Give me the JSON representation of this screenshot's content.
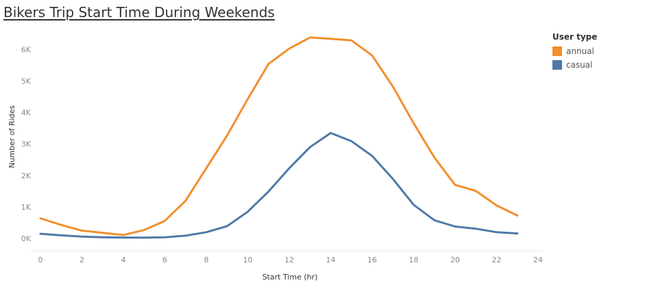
{
  "page": {
    "title": "Bikers Trip Start Time During Weekends"
  },
  "legend": {
    "title": "User type",
    "items": [
      {
        "label": "annual",
        "color": "#F28E2B"
      },
      {
        "label": "casual",
        "color": "#4E79A7"
      }
    ]
  },
  "chart_data": {
    "type": "line",
    "title": "Bikers Trip Start Time During Weekends",
    "xlabel": "Start Time (hr)",
    "ylabel": "Number of Rides",
    "xlim": [
      0,
      24
    ],
    "ylim": [
      0,
      6400
    ],
    "x_ticks": [
      0,
      2,
      4,
      6,
      8,
      10,
      12,
      14,
      16,
      18,
      20,
      22,
      24
    ],
    "y_ticks": [
      0,
      1000,
      2000,
      3000,
      4000,
      5000,
      6000
    ],
    "y_tick_labels": [
      "0K",
      "1K",
      "2K",
      "3K",
      "4K",
      "5K",
      "6K"
    ],
    "x": [
      0,
      1,
      2,
      3,
      4,
      5,
      6,
      7,
      8,
      9,
      10,
      11,
      12,
      13,
      14,
      15,
      16,
      17,
      18,
      19,
      20,
      21,
      22,
      23
    ],
    "series": [
      {
        "name": "annual",
        "color": "#F28E2B",
        "values": [
          640,
          430,
          250,
          180,
          110,
          270,
          560,
          1200,
          2230,
          3270,
          4430,
          5540,
          6030,
          6380,
          6340,
          6290,
          5810,
          4820,
          3660,
          2570,
          1700,
          1510,
          1050,
          730
        ]
      },
      {
        "name": "casual",
        "color": "#4E79A7",
        "values": [
          150,
          100,
          60,
          40,
          30,
          25,
          40,
          90,
          200,
          390,
          850,
          1490,
          2230,
          2900,
          3350,
          3090,
          2620,
          1890,
          1070,
          580,
          380,
          310,
          200,
          160
        ]
      }
    ],
    "grid": false,
    "legend_position": "top-right"
  }
}
